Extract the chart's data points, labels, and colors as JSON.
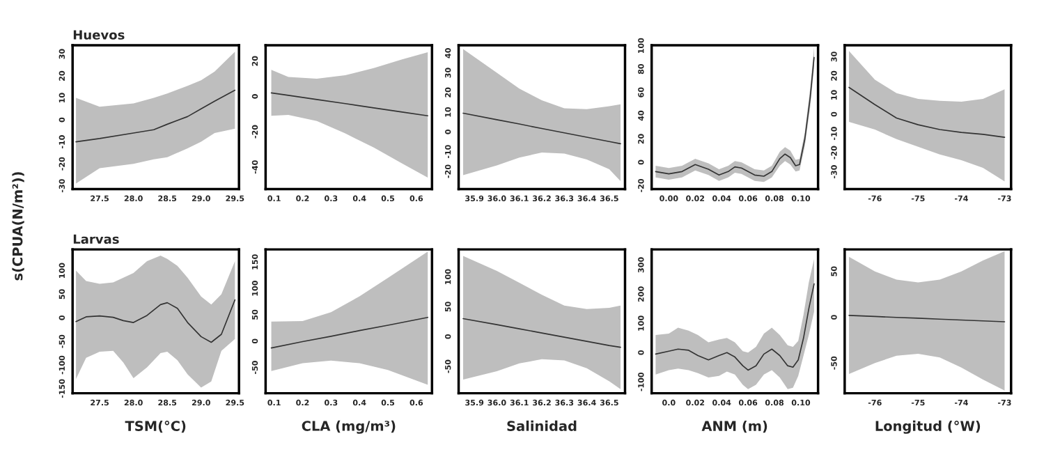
{
  "chart_data": [
    {
      "type": "line",
      "title": "Huevos",
      "ylabel": "s(CPUA(N/m²))",
      "xlim": [
        27.1,
        29.56
      ],
      "xticks": [
        27.5,
        {
          "value": 28,
          "label": "28.0"
        },
        28.5,
        {
          "value": 29,
          "label": "29.0"
        },
        29.5
      ],
      "ylim": [
        -31.5,
        34
      ],
      "yticks": [
        -30,
        -20,
        -10,
        0,
        10,
        20,
        30
      ],
      "series": [
        {
          "color": "#333333",
          "x": [
            27.15,
            27.5,
            28.0,
            28.3,
            28.5,
            28.8,
            29.0,
            29.2,
            29.5
          ],
          "values": [
            -10,
            -8.5,
            -6,
            -4.5,
            -2,
            1.5,
            5,
            8.5,
            13.5
          ],
          "lower": [
            -29,
            -22,
            -20,
            -18,
            -17,
            -13,
            -10,
            -6,
            -4
          ],
          "upper": [
            10,
            6,
            7.5,
            10,
            12,
            15.5,
            18,
            22,
            31
          ]
        }
      ]
    },
    {
      "type": "line",
      "xlim": [
        0.07,
        0.655
      ],
      "xticks": [
        0.1,
        0.2,
        0.3,
        0.4,
        0.5,
        0.6
      ],
      "ylim": [
        -52.5,
        29
      ],
      "yticks": [
        -40,
        -20,
        0,
        20
      ],
      "series": [
        {
          "color": "#333333",
          "x": [
            0.09,
            0.15,
            0.25,
            0.35,
            0.45,
            0.55,
            0.64
          ],
          "values": [
            2,
            0.6,
            -1.8,
            -4.1,
            -6.5,
            -8.9,
            -11
          ],
          "lower": [
            -11,
            -10.5,
            -14,
            -21,
            -29,
            -38,
            -46
          ],
          "upper": [
            15,
            11,
            10,
            12,
            16,
            21,
            25
          ]
        }
      ]
    },
    {
      "type": "line",
      "xlim": [
        35.83,
        36.57
      ],
      "xticks": [
        35.9,
        {
          "value": 36,
          "label": "36.0"
        },
        36.1,
        36.2,
        36.3,
        36.4,
        36.5
      ],
      "ylim": [
        -29,
        44
      ],
      "yticks": [
        -20,
        -10,
        0,
        10,
        20,
        30,
        40
      ],
      "series": [
        {
          "color": "#333333",
          "x": [
            35.85,
            36.0,
            36.1,
            36.2,
            36.3,
            36.4,
            36.5,
            36.55
          ],
          "values": [
            9.5,
            6.2,
            4,
            1.7,
            -0.5,
            -2.7,
            -4.9,
            -6
          ],
          "lower": [
            -22,
            -17,
            -13,
            -10.5,
            -11,
            -14,
            -19,
            -25
          ],
          "upper": [
            42,
            30,
            22,
            16,
            12,
            11.5,
            13,
            14
          ]
        }
      ]
    },
    {
      "type": "line",
      "xlim": [
        -0.013,
        0.113
      ],
      "xticks": [
        {
          "value": 0,
          "label": "0.00"
        },
        0.02,
        0.04,
        0.06,
        0.08,
        {
          "value": 0.1,
          "label": "0.10"
        }
      ],
      "ylim": [
        -23,
        100.5
      ],
      "yticks": [
        -20,
        0,
        20,
        40,
        60,
        80,
        100
      ],
      "series": [
        {
          "color": "#333333",
          "x": [
            -0.01,
            0.0,
            0.01,
            0.02,
            0.03,
            0.038,
            0.045,
            0.05,
            0.055,
            0.065,
            0.072,
            0.078,
            0.084,
            0.088,
            0.092,
            0.096,
            0.099,
            0.103,
            0.107,
            0.11
          ],
          "values": [
            -8,
            -10,
            -8,
            -2,
            -6,
            -11,
            -8,
            -4,
            -5,
            -11,
            -12,
            -8,
            3,
            7,
            4,
            -3,
            -2,
            20,
            55,
            90
          ],
          "lower": [
            -13,
            -15,
            -13,
            -7,
            -11,
            -16,
            -13,
            -9,
            -10,
            -16,
            -17,
            -13,
            -3,
            1,
            -2,
            -8,
            -7,
            14,
            47,
            81
          ],
          "upper": [
            -3,
            -5,
            -3,
            3,
            -1,
            -6,
            -3,
            1,
            0,
            -6,
            -7,
            -3,
            9,
            13,
            10,
            2,
            3,
            26,
            63,
            99
          ]
        }
      ]
    },
    {
      "type": "line",
      "xlim": [
        -76.7,
        -72.85
      ],
      "xticks": [
        -76,
        -75,
        -74,
        -73
      ],
      "ylim": [
        -39,
        36
      ],
      "yticks": [
        -30,
        -20,
        -10,
        0,
        10,
        20,
        30
      ],
      "series": [
        {
          "color": "#333333",
          "x": [
            -76.6,
            -76,
            -75.5,
            -75,
            -74.5,
            -74,
            -73.5,
            -73
          ],
          "values": [
            14,
            5,
            -2,
            -5.5,
            -8,
            -9.5,
            -10.5,
            -12
          ],
          "lower": [
            -4,
            -8,
            -13,
            -17,
            -21,
            -24,
            -28,
            -35
          ],
          "upper": [
            33,
            18,
            11,
            8,
            7,
            6.5,
            8,
            13
          ]
        }
      ]
    },
    {
      "type": "line",
      "title": "Larvas",
      "xlabel": "TSM(°C)",
      "xlim": [
        27.1,
        29.56
      ],
      "xticks": [
        27.5,
        {
          "value": 28,
          "label": "28.0"
        },
        28.5,
        {
          "value": 29,
          "label": "29.0"
        },
        29.5
      ],
      "ylim": [
        -160,
        145
      ],
      "yticks": [
        -150,
        -100,
        -50,
        0,
        50,
        100
      ],
      "series": [
        {
          "color": "#333333",
          "x": [
            27.15,
            27.3,
            27.5,
            27.7,
            27.85,
            28.0,
            28.2,
            28.4,
            28.5,
            28.65,
            28.8,
            29.0,
            29.15,
            29.3,
            29.5
          ],
          "values": [
            -8,
            2,
            4,
            1,
            -6,
            -10,
            5,
            28,
            32,
            20,
            -10,
            -40,
            -52,
            -35,
            38
          ],
          "lower": [
            -130,
            -85,
            -72,
            -70,
            -95,
            -128,
            -105,
            -75,
            -72,
            -90,
            -120,
            -148,
            -135,
            -70,
            -45
          ],
          "upper": [
            100,
            78,
            72,
            75,
            85,
            95,
            120,
            132,
            125,
            110,
            85,
            45,
            28,
            50,
            120
          ]
        }
      ]
    },
    {
      "type": "line",
      "xlabel": "CLA (mg/m³)",
      "xlim": [
        0.07,
        0.655
      ],
      "xticks": [
        0.1,
        0.2,
        0.3,
        0.4,
        0.5,
        0.6
      ],
      "ylim": [
        -99,
        174
      ],
      "yticks": [
        -50,
        0,
        50,
        100,
        150
      ],
      "series": [
        {
          "color": "#333333",
          "x": [
            0.09,
            0.2,
            0.3,
            0.4,
            0.5,
            0.64
          ],
          "values": [
            -13,
            -1,
            9,
            20,
            30,
            45
          ],
          "lower": [
            -57,
            -42,
            -37,
            -42,
            -55,
            -83
          ],
          "upper": [
            37,
            38,
            55,
            85,
            120,
            170
          ]
        }
      ]
    },
    {
      "type": "line",
      "xlabel": "Salinidad",
      "xlim": [
        35.83,
        36.57
      ],
      "xticks": [
        35.9,
        {
          "value": 36,
          "label": "36.0"
        },
        36.1,
        36.2,
        36.3,
        36.4,
        36.5
      ],
      "ylim": [
        -95,
        146
      ],
      "yticks": [
        -50,
        0,
        50,
        100
      ],
      "series": [
        {
          "color": "#333333",
          "x": [
            35.85,
            36.0,
            36.1,
            36.2,
            36.3,
            36.4,
            36.5,
            36.55
          ],
          "values": [
            30,
            20,
            13,
            6,
            -1,
            -8,
            -15,
            -18
          ],
          "lower": [
            -72,
            -58,
            -45,
            -38,
            -40,
            -53,
            -75,
            -88
          ],
          "upper": [
            135,
            110,
            90,
            70,
            52,
            46,
            48,
            52
          ]
        }
      ]
    },
    {
      "type": "line",
      "xlabel": "ANM (m)",
      "xlim": [
        -0.013,
        0.113
      ],
      "xticks": [
        {
          "value": 0,
          "label": "0.0"
        },
        0.02,
        0.04,
        0.06,
        0.08,
        {
          "value": 0.1,
          "label": "0.10"
        }
      ],
      "ylim": [
        -139,
        353
      ],
      "yticks": [
        -100,
        0,
        100,
        200,
        300
      ],
      "series": [
        {
          "color": "#333333",
          "x": [
            -0.01,
            0.0,
            0.007,
            0.015,
            0.022,
            0.03,
            0.038,
            0.044,
            0.05,
            0.056,
            0.06,
            0.066,
            0.072,
            0.078,
            0.084,
            0.09,
            0.094,
            0.098,
            0.102,
            0.106,
            0.11
          ],
          "values": [
            -5,
            5,
            12,
            8,
            -10,
            -25,
            -10,
            0,
            -15,
            -45,
            -60,
            -45,
            -5,
            12,
            -10,
            -45,
            -50,
            -25,
            50,
            150,
            235
          ],
          "lower": [
            -75,
            -60,
            -55,
            -60,
            -70,
            -85,
            -80,
            -65,
            -75,
            -110,
            -125,
            -110,
            -75,
            -60,
            -85,
            -125,
            -120,
            -80,
            -10,
            60,
            140
          ],
          "upper": [
            60,
            65,
            85,
            75,
            60,
            35,
            45,
            50,
            35,
            5,
            0,
            20,
            65,
            85,
            60,
            25,
            20,
            40,
            130,
            240,
            320
          ]
        }
      ]
    },
    {
      "type": "line",
      "xlabel": "Longitud (°W)",
      "xlim": [
        -76.7,
        -72.85
      ],
      "xticks": [
        -76,
        -75,
        -74,
        -73
      ],
      "ylim": [
        -83,
        74
      ],
      "yticks": [
        -50,
        0,
        50
      ],
      "series": [
        {
          "color": "#333333",
          "x": [
            -76.6,
            -76,
            -75.5,
            -75,
            -74.5,
            -74,
            -73.5,
            -73
          ],
          "values": [
            2,
            0.8,
            -0.2,
            -1.1,
            -2.1,
            -3.1,
            -4,
            -5
          ],
          "lower": [
            -62,
            -50,
            -42,
            -40,
            -44,
            -55,
            -68,
            -80
          ],
          "upper": [
            66,
            50,
            41,
            38,
            41,
            50,
            62,
            72
          ]
        }
      ]
    }
  ]
}
